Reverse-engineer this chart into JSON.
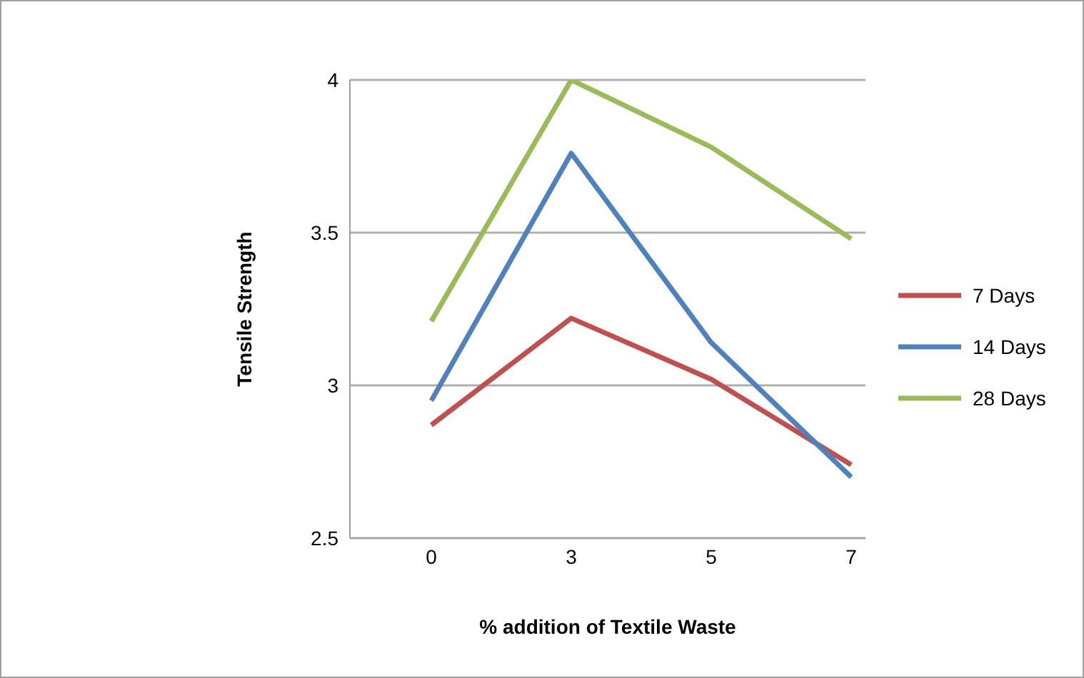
{
  "chart_data": {
    "type": "line",
    "xlabel": "% addition of Textile Waste",
    "ylabel": "Tensile Strength",
    "categories": [
      "0",
      "3",
      "5",
      "7"
    ],
    "series": [
      {
        "name": "7 Days",
        "color": "#c0504d",
        "values": [
          2.87,
          3.22,
          3.02,
          2.74
        ]
      },
      {
        "name": "14 Days",
        "color": "#4f81bd",
        "values": [
          2.95,
          3.76,
          3.14,
          2.7
        ]
      },
      {
        "name": "28 Days",
        "color": "#9bbb59",
        "values": [
          3.21,
          4,
          3.78,
          3.48
        ]
      }
    ],
    "ylim": [
      2.5,
      4
    ],
    "yticks": [
      2.5,
      3,
      3.5,
      4
    ],
    "grid": "y",
    "legend": "right",
    "marker": "none",
    "line_style": "solid"
  }
}
